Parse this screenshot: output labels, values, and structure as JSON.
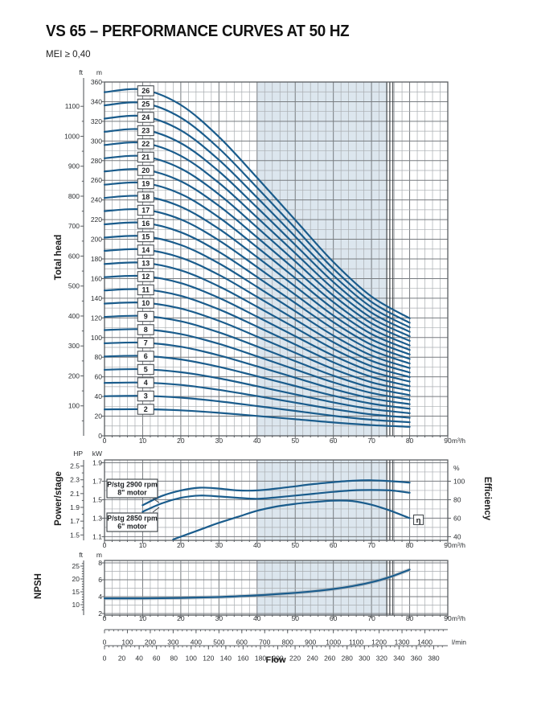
{
  "header": {
    "title": "VS 65 – PERFORMANCE CURVES AT 50 HZ",
    "subtitle": "MEI ≥ 0,40"
  },
  "colors": {
    "curve": "#1a5c8c",
    "band": "#dce6ee",
    "grid_minor": "#a9adb1",
    "grid_major": "#787c80",
    "border": "#595d61",
    "marker": "#3f4347",
    "text": "#2b2e31",
    "halo": "#9aa4ac",
    "box_border": "#3a3f44",
    "box_text": "#1b1e21"
  },
  "flow_axis": {
    "label": "Flow",
    "unit": "m³/h",
    "labels": [
      0,
      10,
      20,
      30,
      40,
      50,
      60,
      70,
      80,
      90
    ],
    "minor_step": 2,
    "operating_band": [
      40,
      74
    ],
    "marker_lines": [
      74,
      74.8,
      75.6
    ]
  },
  "chart_data": [
    {
      "id": "total-head",
      "type": "line",
      "ylabel": "Total head",
      "units": {
        "left": "ft",
        "right": "m"
      },
      "m_ticks": [
        0,
        20,
        40,
        60,
        80,
        100,
        120,
        140,
        160,
        180,
        200,
        220,
        240,
        260,
        280,
        300,
        320,
        340,
        360
      ],
      "ft_ticks": [
        100,
        200,
        300,
        400,
        500,
        600,
        700,
        800,
        900,
        1000,
        1100
      ],
      "stages": [
        2,
        3,
        4,
        5,
        6,
        7,
        8,
        9,
        10,
        11,
        12,
        13,
        14,
        15,
        16,
        17,
        18,
        19,
        20,
        21,
        22,
        23,
        24,
        25,
        26
      ],
      "q": [
        0,
        10,
        20,
        30,
        40,
        50,
        60,
        70,
        80
      ],
      "head_per_stage_m": [
        13.45,
        13.55,
        12.95,
        11.7,
        10.1,
        8.45,
        6.8,
        5.45,
        4.6
      ],
      "stage_label_q": 10.8,
      "note": "curve for n stages = n × head_per_stage_m at each q (m³/h)"
    },
    {
      "id": "power-stage",
      "type": "line",
      "ylabel": "Power/stage",
      "y2label": "Efficiency",
      "units": {
        "left": "HP",
        "mid": "kW",
        "right": "%"
      },
      "kw_ticks": [
        1.1,
        1.3,
        1.5,
        1.7,
        1.9
      ],
      "hp_ticks": [
        1.5,
        1.7,
        1.9,
        2.1,
        2.3,
        2.5
      ],
      "pct_ticks": [
        40,
        60,
        80,
        100
      ],
      "series": [
        {
          "name": "P/stg 2900 rpm",
          "motor": "8\" motor",
          "q": [
            10,
            15,
            20,
            25,
            30,
            35,
            40,
            45,
            50,
            55,
            60,
            65,
            70,
            75,
            80
          ],
          "kw": [
            1.44,
            1.54,
            1.6,
            1.63,
            1.62,
            1.6,
            1.6,
            1.62,
            1.645,
            1.67,
            1.69,
            1.705,
            1.71,
            1.7,
            1.685
          ]
        },
        {
          "name": "P/stg 2850 rpm",
          "motor": "6\" motor",
          "q": [
            10,
            15,
            20,
            25,
            30,
            35,
            40,
            45,
            50,
            55,
            60,
            65,
            70,
            75,
            80
          ],
          "kw": [
            1.37,
            1.46,
            1.52,
            1.545,
            1.535,
            1.52,
            1.51,
            1.525,
            1.545,
            1.565,
            1.585,
            1.6,
            1.605,
            1.6,
            1.575
          ]
        }
      ],
      "efficiency": {
        "symbol": "η",
        "q": [
          18,
          25,
          30,
          35,
          40,
          45,
          50,
          55,
          60,
          65,
          70,
          75,
          80
        ],
        "pct": [
          37,
          47.5,
          55,
          61.5,
          68,
          72.5,
          75.5,
          77.5,
          79,
          78.5,
          74.5,
          68,
          60
        ]
      }
    },
    {
      "id": "npsh",
      "type": "line",
      "ylabel": "NPSH",
      "units": {
        "left": "ft",
        "right": "m"
      },
      "m_ticks": [
        2,
        4,
        6,
        8
      ],
      "ft_ticks": [
        10,
        15,
        20,
        25
      ],
      "q": [
        0,
        10,
        20,
        30,
        40,
        45,
        50,
        55,
        60,
        65,
        70,
        75,
        80
      ],
      "npsh_m": [
        3.8,
        3.8,
        3.85,
        3.95,
        4.15,
        4.3,
        4.45,
        4.65,
        4.9,
        5.25,
        5.7,
        6.35,
        7.2
      ]
    }
  ],
  "bottom_axes": [
    {
      "unit": "l/min",
      "labels": [
        0,
        100,
        200,
        300,
        400,
        500,
        600,
        700,
        800,
        900,
        1000,
        1100,
        1200,
        1300,
        1400
      ],
      "minor_step": 20
    },
    {
      "unit": "",
      "labels": [
        0,
        20,
        40,
        60,
        80,
        100,
        120,
        140,
        160,
        180,
        200,
        220,
        240,
        260,
        280,
        300,
        320,
        340,
        360,
        380
      ],
      "minor_step": 5
    }
  ]
}
